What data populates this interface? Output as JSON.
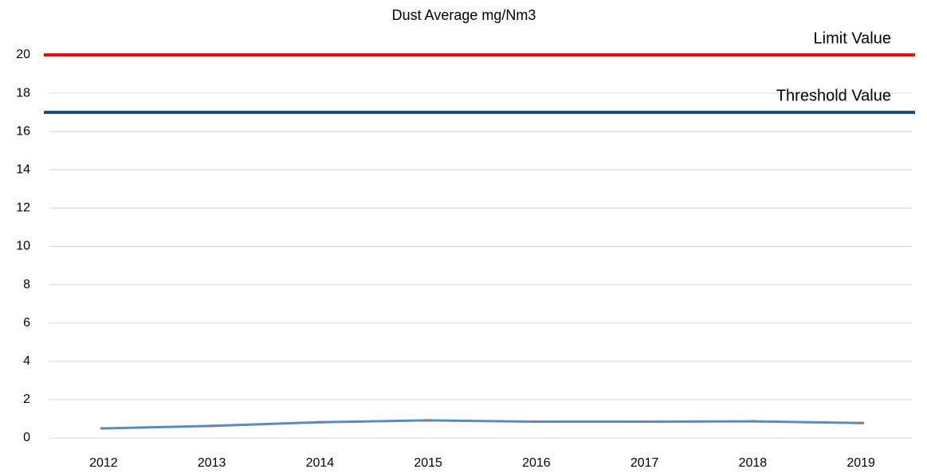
{
  "chart_data": {
    "type": "line",
    "title": "Dust Average mg/Nm3",
    "categories": [
      "2012",
      "2013",
      "2014",
      "2015",
      "2016",
      "2017",
      "2018",
      "2019"
    ],
    "series": [
      {
        "color": "#5a8ac6",
        "values": [
          0.5,
          0.63,
          0.82,
          0.92,
          0.85,
          0.85,
          0.87,
          0.78
        ]
      }
    ],
    "reference_lines": [
      {
        "label": "Limit Value",
        "value": 20,
        "color": "#ff0000"
      },
      {
        "label": "Threshold Value",
        "value": 17,
        "color": "#1f497d"
      }
    ],
    "ylim": [
      0,
      20
    ],
    "yticks": [
      0,
      2,
      4,
      6,
      8,
      10,
      12,
      14,
      16,
      18,
      20
    ],
    "grid": true
  }
}
